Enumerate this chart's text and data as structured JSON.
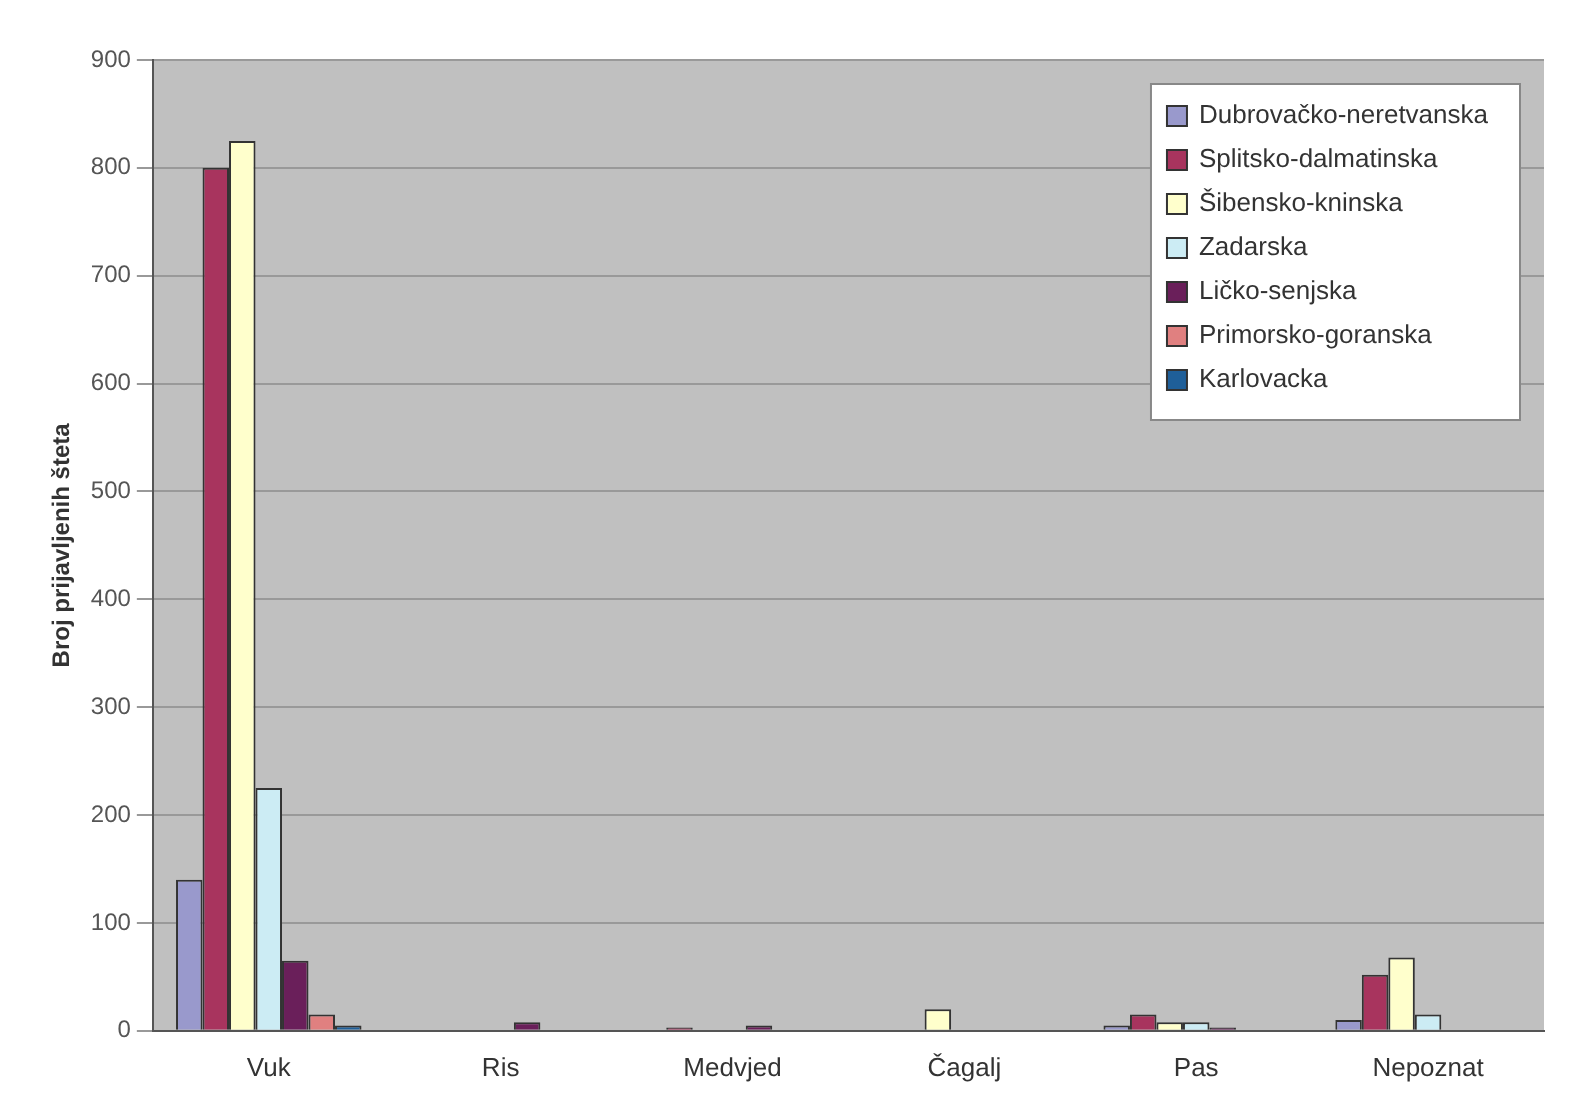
{
  "chart_data": {
    "type": "bar",
    "ylabel": "Broj prijavljenih šteta",
    "categories": [
      "Vuk",
      "Ris",
      "Medvjed",
      "Čagalj",
      "Pas",
      "Nepoznat"
    ],
    "series": [
      {
        "name": "Dubrovačko-neretvanska",
        "color": "#9999cc",
        "values": [
          140,
          0,
          0,
          0,
          5,
          10
        ]
      },
      {
        "name": "Splitsko-dalmatinska",
        "color": "#a8345e",
        "values": [
          800,
          0,
          3,
          0,
          15,
          52
        ]
      },
      {
        "name": "Šibensko-kninska",
        "color": "#ffffcc",
        "values": [
          825,
          0,
          0,
          20,
          8,
          68
        ]
      },
      {
        "name": "Zadarska",
        "color": "#ccecf4",
        "values": [
          225,
          0,
          0,
          0,
          8,
          15
        ]
      },
      {
        "name": "Ličko-senjska",
        "color": "#6a1f5a",
        "values": [
          65,
          8,
          5,
          0,
          3,
          0
        ]
      },
      {
        "name": "Primorsko-goranska",
        "color": "#e08080",
        "values": [
          15,
          0,
          null,
          0,
          0,
          0
        ]
      },
      {
        "name": "Karlovacka",
        "color": "#1f5f99",
        "values": [
          5,
          0,
          0,
          0,
          0,
          0
        ]
      }
    ],
    "ylim": [
      0,
      900
    ],
    "yticks": [
      0,
      100,
      200,
      300,
      400,
      500,
      600,
      700,
      800,
      900
    ],
    "grid": "y",
    "legend": "top right"
  }
}
